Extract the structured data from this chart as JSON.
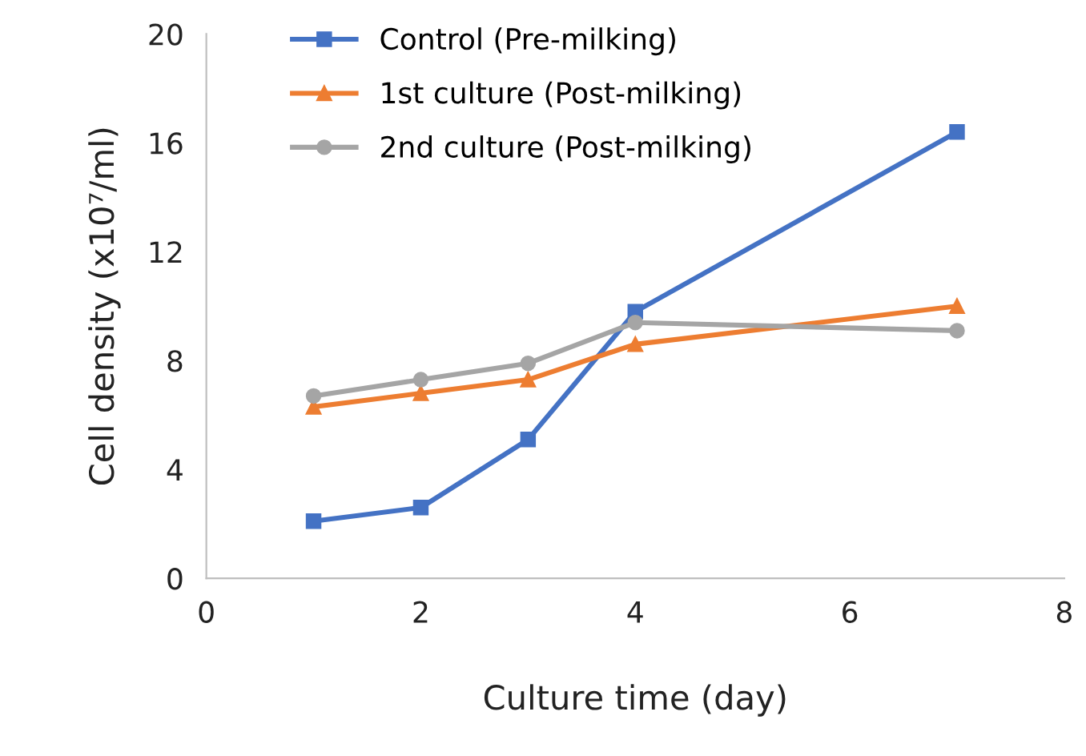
{
  "chart_data": {
    "type": "line",
    "xlabel": "Culture time (day)",
    "ylabel": "Cell density (x10⁷/ml)",
    "x": [
      1,
      2,
      3,
      4,
      7
    ],
    "series": [
      {
        "name": "Control (Pre-milking)",
        "color": "#4472c4",
        "marker": "square",
        "values": [
          2.1,
          2.6,
          5.1,
          9.8,
          16.4
        ]
      },
      {
        "name": "1st culture (Post-milking)",
        "color": "#ed7d31",
        "marker": "triangle",
        "values": [
          6.3,
          6.8,
          7.3,
          8.6,
          10.0
        ]
      },
      {
        "name": "2nd culture (Post-milking)",
        "color": "#a5a5a5",
        "marker": "circle",
        "values": [
          6.7,
          7.3,
          7.9,
          9.4,
          9.1
        ]
      }
    ],
    "xlim": [
      0,
      8
    ],
    "xticks": [
      0,
      2,
      4,
      6,
      8
    ],
    "ylim": [
      0,
      20
    ],
    "yticks": [
      0,
      4,
      8,
      12,
      16,
      20
    ],
    "grid": false,
    "legend": "top left"
  }
}
